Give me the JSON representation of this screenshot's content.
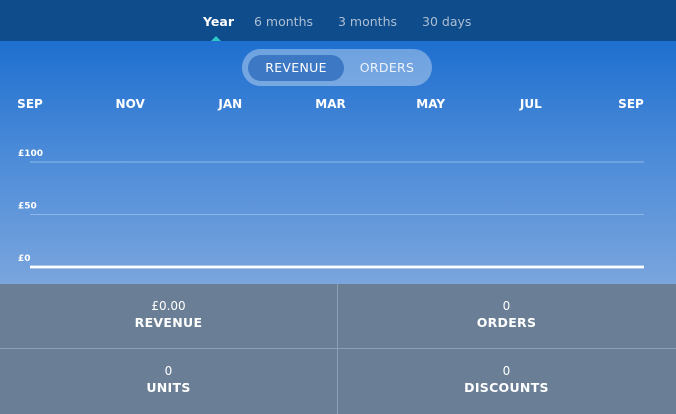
{
  "periods": [
    {
      "label": "Year",
      "active": true
    },
    {
      "label": "6 months",
      "active": false
    },
    {
      "label": "3 months",
      "active": false
    },
    {
      "label": "30 days",
      "active": false
    }
  ],
  "toggle": {
    "revenue_label": "REVENUE",
    "orders_label": "ORDERS",
    "selected": "REVENUE"
  },
  "chart_data": {
    "type": "line",
    "title": "",
    "x": [
      "SEP",
      "NOV",
      "JAN",
      "MAR",
      "MAY",
      "JUL",
      "SEP"
    ],
    "y_ticks": [
      "£100",
      "£50",
      "£0"
    ],
    "y_tick_values": [
      100,
      50,
      0
    ],
    "ylim": [
      0,
      100
    ],
    "series": [
      {
        "values": [
          0,
          0,
          0,
          0,
          0,
          0,
          0
        ]
      }
    ],
    "grid": true
  },
  "stats": {
    "revenue": {
      "value": "£0.00",
      "label": "REVENUE"
    },
    "orders": {
      "value": "0",
      "label": "ORDERS"
    },
    "units": {
      "value": "0",
      "label": "UNITS"
    },
    "discounts": {
      "value": "0",
      "label": "DISCOUNTS"
    }
  },
  "colors": {
    "header": "#0e4c8c",
    "accent": "#2ec4c8",
    "toggle_selected": "#3d78c4",
    "stats_bg": "#6a7f95"
  }
}
